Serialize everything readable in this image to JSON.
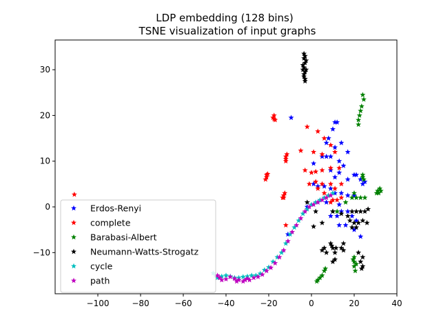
{
  "chart_data": {
    "type": "scatter",
    "title": "LDP embedding (128 bins)",
    "subtitle": "TSNE visualization of input graphs",
    "xlabel": "",
    "ylabel": "",
    "xlim": [
      -120,
      40
    ],
    "ylim": [
      -19,
      36.5
    ],
    "x_ticks": [
      -100,
      -80,
      -60,
      -40,
      -20,
      0,
      20,
      40
    ],
    "y_ticks": [
      -10,
      0,
      10,
      20,
      30
    ],
    "x_tick_labels": [
      "−100",
      "−80",
      "−60",
      "−40",
      "−20",
      "0",
      "20",
      "40"
    ],
    "y_tick_labels": [
      "−10",
      "0",
      "10",
      "20",
      "30"
    ],
    "grid": false,
    "legend_position": "lower-left",
    "marker": "star",
    "series": [
      {
        "name": "Erdos-Renyi",
        "color": "#0000ff",
        "points": [
          [
            -9.5,
            19.5
          ],
          [
            11,
            18.5
          ],
          [
            12,
            18.5
          ],
          [
            10,
            17
          ],
          [
            8,
            15
          ],
          [
            7,
            14
          ],
          [
            14,
            14
          ],
          [
            11,
            13
          ],
          [
            17,
            12
          ],
          [
            5,
            11
          ],
          [
            7,
            11
          ],
          [
            9,
            11
          ],
          [
            13,
            10
          ],
          [
            1,
            9.5
          ],
          [
            15,
            9
          ],
          [
            9,
            8
          ],
          [
            13,
            7.5
          ],
          [
            20,
            7
          ],
          [
            21,
            7
          ],
          [
            11,
            6.5
          ],
          [
            17,
            6
          ],
          [
            23,
            6
          ],
          [
            24,
            5
          ],
          [
            25,
            5.5
          ],
          [
            1,
            5
          ],
          [
            3,
            4.5
          ],
          [
            6,
            4.5
          ],
          [
            9,
            4
          ],
          [
            11,
            3
          ],
          [
            14,
            3
          ],
          [
            17,
            2.5
          ],
          [
            20,
            2.5
          ],
          [
            3,
            1
          ],
          [
            7,
            1
          ],
          [
            13,
            0.5
          ],
          [
            -2,
            0
          ],
          [
            14,
            -1
          ],
          [
            17,
            -1
          ],
          [
            9,
            -2
          ],
          [
            12,
            -2
          ],
          [
            19,
            -2
          ],
          [
            13,
            -4
          ],
          [
            16,
            -4
          ],
          [
            20,
            -5
          ],
          [
            23,
            -6.5
          ],
          [
            21,
            -3
          ],
          [
            -11,
            -6
          ]
        ]
      },
      {
        "name": "complete",
        "color": "#ff0000",
        "points": [
          [
            -111,
            2.7
          ],
          [
            -17.5,
            19.2
          ],
          [
            -17.5,
            20
          ],
          [
            -17,
            19
          ],
          [
            -18,
            19.5
          ],
          [
            -12,
            11
          ],
          [
            -12,
            10.5
          ],
          [
            -11.5,
            11.5
          ],
          [
            -12,
            10
          ],
          [
            -21,
            7
          ],
          [
            -21,
            6.5
          ],
          [
            -20.5,
            7.2
          ],
          [
            -21.5,
            6
          ],
          [
            -13,
            2.5
          ],
          [
            -13,
            2
          ],
          [
            -12.5,
            3
          ],
          [
            -13.5,
            2
          ],
          [
            -12,
            -4
          ],
          [
            -2,
            17.5
          ],
          [
            3,
            16.5
          ],
          [
            6,
            15
          ],
          [
            -5,
            12.3
          ],
          [
            1,
            12
          ],
          [
            5,
            11.5
          ],
          [
            9,
            13.5
          ],
          [
            11,
            12
          ],
          [
            -3,
            8
          ],
          [
            0,
            7.5
          ],
          [
            2,
            7.7
          ],
          [
            5,
            8
          ],
          [
            9,
            8.5
          ],
          [
            13,
            8.5
          ],
          [
            -1,
            5
          ],
          [
            2,
            5.5
          ],
          [
            5,
            5
          ],
          [
            9,
            5
          ],
          [
            3,
            4
          ],
          [
            6,
            3
          ],
          [
            8,
            2.5
          ],
          [
            10,
            1.5
          ],
          [
            12,
            1.5
          ],
          [
            14,
            2
          ],
          [
            9,
            1
          ],
          [
            11,
            4
          ],
          [
            14,
            5
          ]
        ]
      },
      {
        "name": "Barabasi-Albert",
        "color": "#008000",
        "points": [
          [
            24,
            24.5
          ],
          [
            24.5,
            23.5
          ],
          [
            23.5,
            22
          ],
          [
            23,
            21
          ],
          [
            22.5,
            20
          ],
          [
            22,
            19
          ],
          [
            22,
            18
          ],
          [
            24,
            6.5
          ],
          [
            24.5,
            6
          ],
          [
            24,
            7
          ],
          [
            31,
            3.5
          ],
          [
            32,
            4
          ],
          [
            31.5,
            3
          ],
          [
            30.5,
            3
          ],
          [
            32.5,
            3.5
          ],
          [
            20,
            3
          ],
          [
            21,
            2
          ],
          [
            19,
            2
          ],
          [
            23,
            2
          ],
          [
            25,
            2
          ],
          [
            16,
            1
          ],
          [
            12,
            -1
          ],
          [
            10,
            -1
          ],
          [
            20,
            -11
          ],
          [
            20,
            -12
          ],
          [
            20,
            -13
          ],
          [
            20.5,
            -14
          ],
          [
            19.5,
            -11.5
          ],
          [
            21,
            -12.5
          ],
          [
            3,
            -16
          ],
          [
            4,
            -15.5
          ],
          [
            5,
            -15
          ],
          [
            6,
            -14
          ],
          [
            6.5,
            -13.5
          ],
          [
            2.5,
            -16.3
          ]
        ]
      },
      {
        "name": "Neumann-Watts-Strogatz",
        "color": "#000000",
        "points": [
          [
            -3.5,
            33.5
          ],
          [
            -3.5,
            32.5
          ],
          [
            -3,
            31.5
          ],
          [
            -3.5,
            30.5
          ],
          [
            -3,
            29.5
          ],
          [
            -3.5,
            29
          ],
          [
            -3,
            28
          ],
          [
            -4,
            31
          ],
          [
            -2.5,
            30
          ],
          [
            -3,
            27.5
          ],
          [
            -3.5,
            28.5
          ],
          [
            -2.5,
            32
          ],
          [
            -4,
            30
          ],
          [
            -3,
            33
          ],
          [
            -2,
            1
          ],
          [
            2,
            -1
          ],
          [
            10,
            -1
          ],
          [
            14,
            -1.5
          ],
          [
            17,
            -2
          ],
          [
            19,
            -1
          ],
          [
            21,
            -1
          ],
          [
            23,
            -1
          ],
          [
            25,
            -1
          ],
          [
            26.5,
            -0.5
          ],
          [
            18,
            -3
          ],
          [
            20,
            -3.5
          ],
          [
            22,
            -3.5
          ],
          [
            24,
            -3
          ],
          [
            26,
            -3.5
          ],
          [
            19,
            -4.5
          ],
          [
            21,
            -4.5
          ],
          [
            5,
            -3.5
          ],
          [
            1,
            -4.3
          ],
          [
            9,
            -8
          ],
          [
            10,
            -9
          ],
          [
            11,
            -10
          ],
          [
            11,
            -11.5
          ],
          [
            10,
            -12
          ],
          [
            9.5,
            -8.5
          ],
          [
            11.5,
            -9
          ],
          [
            5,
            -9.5
          ],
          [
            7,
            -10
          ],
          [
            6,
            -9
          ],
          [
            15,
            -8
          ],
          [
            15,
            -9.5
          ],
          [
            14,
            -9
          ],
          [
            22,
            -10
          ],
          [
            23,
            -12
          ],
          [
            24,
            -13
          ],
          [
            24,
            -11
          ],
          [
            23.5,
            -13.5
          ]
        ]
      },
      {
        "name": "cycle",
        "color": "#00bfbf",
        "points": [
          [
            -46,
            -14.5
          ],
          [
            -45,
            -15
          ],
          [
            -44,
            -15.5
          ],
          [
            -42,
            -15.2
          ],
          [
            -40,
            -15
          ],
          [
            -38,
            -15.2
          ],
          [
            -36,
            -15.5
          ],
          [
            -34,
            -15.5
          ],
          [
            -32,
            -15.3
          ],
          [
            -30,
            -15.2
          ],
          [
            -28,
            -15
          ],
          [
            -26,
            -15
          ],
          [
            -24,
            -14.6
          ],
          [
            -22,
            -13.8
          ],
          [
            -20,
            -13.2
          ],
          [
            -18,
            -12
          ],
          [
            -16,
            -11
          ],
          [
            -14,
            -10
          ],
          [
            -12,
            -8
          ],
          [
            -10,
            -6
          ],
          [
            -8,
            -4.5
          ],
          [
            -6,
            -3
          ],
          [
            -4,
            -1.5
          ],
          [
            -2,
            -0.5
          ],
          [
            0,
            0.5
          ],
          [
            2,
            1
          ],
          [
            4,
            1.5
          ],
          [
            6,
            2
          ],
          [
            8,
            2.5
          ],
          [
            10,
            3
          ]
        ]
      },
      {
        "name": "path",
        "color": "#bf00bf",
        "points": [
          [
            -44,
            -15
          ],
          [
            -43,
            -15.5
          ],
          [
            -42,
            -16
          ],
          [
            -40,
            -15.8
          ],
          [
            -38,
            -15.3
          ],
          [
            -36,
            -15.7
          ],
          [
            -35,
            -16.3
          ],
          [
            -34,
            -16
          ],
          [
            -32,
            -16.3
          ],
          [
            -31,
            -16
          ],
          [
            -30,
            -15.7
          ],
          [
            -29,
            -16
          ],
          [
            -27,
            -15.5
          ],
          [
            -25,
            -15.3
          ],
          [
            -23,
            -14.8
          ],
          [
            -21,
            -14
          ],
          [
            -19,
            -13.3
          ],
          [
            -17,
            -12.3
          ],
          [
            -15,
            -11
          ],
          [
            -13,
            -9.5
          ],
          [
            -11,
            -7.5
          ],
          [
            -9,
            -5.5
          ],
          [
            -7,
            -4
          ],
          [
            -5,
            -2.5
          ],
          [
            -3,
            -1
          ],
          [
            -1,
            0
          ],
          [
            1,
            0.5
          ],
          [
            3,
            1
          ],
          [
            5,
            1.5
          ],
          [
            7,
            2
          ],
          [
            9,
            2.5
          ]
        ]
      }
    ]
  }
}
